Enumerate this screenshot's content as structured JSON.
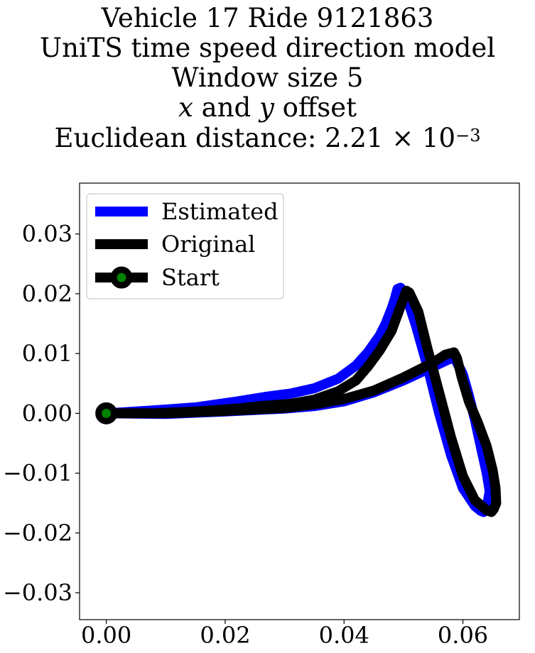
{
  "title": {
    "line1": "Vehicle 17 Ride 9121863",
    "line2": "UniTS time speed direction model",
    "line3": "Window size 5",
    "line4_x": "x",
    "line4_and": " and ",
    "line4_y": "y",
    "line4_rest": " offset",
    "line5_prefix": "Euclidean distance: 2.21 × 10",
    "line5_exp": "−3"
  },
  "chart_data": {
    "type": "line",
    "xlim": [
      -0.0045,
      0.0695
    ],
    "ylim": [
      -0.0345,
      0.0385
    ],
    "x_ticks": [
      0.0,
      0.02,
      0.04,
      0.06
    ],
    "x_tick_labels": [
      "0.00",
      "0.02",
      "0.04",
      "0.06"
    ],
    "y_ticks": [
      0.03,
      0.02,
      0.01,
      0.0,
      -0.01,
      -0.02,
      -0.03
    ],
    "y_tick_labels": [
      "0.03",
      "0.02",
      "0.01",
      "0.00",
      "−0.01",
      "−0.02",
      "−0.03"
    ],
    "grid": false,
    "legend_position": "upper-left",
    "series": [
      {
        "name": "Estimated",
        "color": "#0000ff",
        "x": [
          0.0,
          0.008,
          0.015,
          0.022,
          0.027,
          0.031,
          0.035,
          0.039,
          0.042,
          0.044,
          0.046,
          0.047,
          0.048,
          0.0485,
          0.049,
          0.0495,
          0.0505,
          0.052,
          0.054,
          0.056,
          0.058,
          0.06,
          0.062,
          0.063,
          0.0635,
          0.064,
          0.0645,
          0.064,
          0.063,
          0.062,
          0.061,
          0.06,
          0.059,
          0.0585,
          0.058,
          0.055,
          0.05,
          0.045,
          0.04,
          0.035,
          0.03,
          0.02,
          0.01,
          0.0
        ],
        "y": [
          0.0,
          0.0005,
          0.001,
          0.002,
          0.0028,
          0.0033,
          0.0042,
          0.0058,
          0.008,
          0.0102,
          0.013,
          0.015,
          0.0175,
          0.019,
          0.0208,
          0.021,
          0.0195,
          0.015,
          0.008,
          0.0,
          -0.007,
          -0.0125,
          -0.0155,
          -0.0163,
          -0.0165,
          -0.0158,
          -0.013,
          -0.01,
          -0.0055,
          -0.001,
          0.003,
          0.0065,
          0.0085,
          0.0092,
          0.0092,
          0.0078,
          0.0055,
          0.0035,
          0.002,
          0.0012,
          0.0008,
          0.0003,
          -0.0001,
          0.0
        ]
      },
      {
        "name": "Original",
        "color": "#000000",
        "x": [
          0.0,
          0.008,
          0.015,
          0.022,
          0.027,
          0.031,
          0.035,
          0.039,
          0.042,
          0.044,
          0.046,
          0.048,
          0.049,
          0.05,
          0.0505,
          0.051,
          0.0525,
          0.054,
          0.056,
          0.058,
          0.06,
          0.062,
          0.064,
          0.0648,
          0.0652,
          0.0656,
          0.0655,
          0.065,
          0.064,
          0.0625,
          0.061,
          0.0598,
          0.059,
          0.0585,
          0.057,
          0.055,
          0.05,
          0.045,
          0.04,
          0.035,
          0.03,
          0.02,
          0.01,
          0.0
        ],
        "y": [
          0.0,
          0.0,
          0.0003,
          0.0008,
          0.0013,
          0.0016,
          0.0023,
          0.0037,
          0.0055,
          0.0078,
          0.0105,
          0.0138,
          0.0165,
          0.0192,
          0.0205,
          0.0202,
          0.017,
          0.011,
          0.0035,
          -0.004,
          -0.0105,
          -0.0145,
          -0.0162,
          -0.0165,
          -0.016,
          -0.015,
          -0.0125,
          -0.0095,
          -0.0055,
          -0.0015,
          0.002,
          0.006,
          0.0092,
          0.0102,
          0.0098,
          0.0085,
          0.006,
          0.0038,
          0.0024,
          0.0015,
          0.0009,
          0.0004,
          0.0,
          0.0
        ]
      }
    ],
    "start": {
      "name": "Start",
      "x": 0.0,
      "y": 0.0,
      "edge_color": "#000000",
      "face_color": "#008000"
    }
  }
}
